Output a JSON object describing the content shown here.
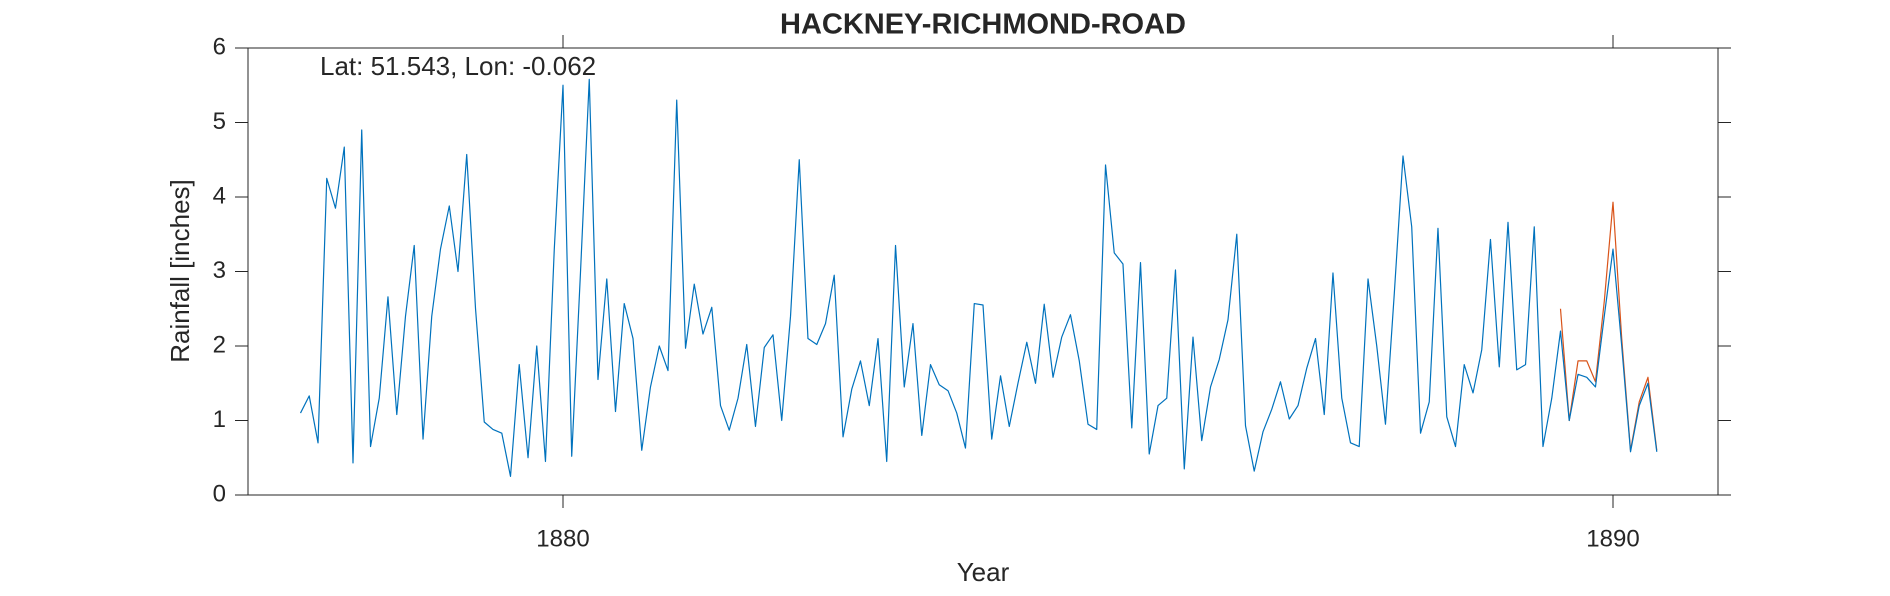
{
  "chart_data": {
    "type": "line",
    "title": "HACKNEY-RICHMOND-ROAD",
    "annotation": "Lat: 51.543, Lon: -0.062",
    "x_label": "Year",
    "y_label": "Rainfall [inches]",
    "xlim": [
      1877,
      1891
    ],
    "xticks": [
      1880,
      1890
    ],
    "ylim": [
      0,
      6
    ],
    "yticks": [
      0,
      1,
      2,
      3,
      4,
      5,
      6
    ],
    "grid": false,
    "series": [
      {
        "color": "#D95319",
        "x": [
          1889.5,
          1889.583,
          1889.667,
          1889.75,
          1889.833,
          1889.917,
          1890,
          1890.083,
          1890.167,
          1890.25,
          1890.333,
          1890.417
        ],
        "values": [
          2.5,
          1.0,
          1.8,
          1.8,
          1.52,
          2.6,
          3.93,
          2.1,
          0.6,
          1.25,
          1.58,
          0.6
        ]
      },
      {
        "color": "#0072BD",
        "x": [
          1877.5,
          1877.583,
          1877.667,
          1877.75,
          1877.833,
          1877.917,
          1878,
          1878.083,
          1878.167,
          1878.25,
          1878.333,
          1878.417,
          1878.5,
          1878.583,
          1878.667,
          1878.75,
          1878.833,
          1878.917,
          1879,
          1879.083,
          1879.167,
          1879.25,
          1879.333,
          1879.417,
          1879.5,
          1879.583,
          1879.667,
          1879.75,
          1879.833,
          1879.917,
          1880,
          1880.083,
          1880.167,
          1880.25,
          1880.333,
          1880.417,
          1880.5,
          1880.583,
          1880.667,
          1880.75,
          1880.833,
          1880.917,
          1881,
          1881.083,
          1881.167,
          1881.25,
          1881.333,
          1881.417,
          1881.5,
          1881.583,
          1881.667,
          1881.75,
          1881.833,
          1881.917,
          1882,
          1882.083,
          1882.167,
          1882.25,
          1882.333,
          1882.417,
          1882.5,
          1882.583,
          1882.667,
          1882.75,
          1882.833,
          1882.917,
          1883,
          1883.083,
          1883.167,
          1883.25,
          1883.333,
          1883.417,
          1883.5,
          1883.583,
          1883.667,
          1883.75,
          1883.833,
          1883.917,
          1884,
          1884.083,
          1884.167,
          1884.25,
          1884.333,
          1884.417,
          1884.5,
          1884.583,
          1884.667,
          1884.75,
          1884.833,
          1884.917,
          1885,
          1885.083,
          1885.167,
          1885.25,
          1885.333,
          1885.417,
          1885.5,
          1885.583,
          1885.667,
          1885.75,
          1885.833,
          1885.917,
          1886,
          1886.083,
          1886.167,
          1886.25,
          1886.333,
          1886.417,
          1886.5,
          1886.583,
          1886.667,
          1886.75,
          1886.833,
          1886.917,
          1887,
          1887.083,
          1887.167,
          1887.25,
          1887.333,
          1887.417,
          1887.5,
          1887.583,
          1887.667,
          1887.75,
          1887.833,
          1887.917,
          1888,
          1888.083,
          1888.167,
          1888.25,
          1888.333,
          1888.417,
          1888.5,
          1888.583,
          1888.667,
          1888.75,
          1888.833,
          1888.917,
          1889,
          1889.083,
          1889.167,
          1889.25,
          1889.333,
          1889.417,
          1889.5,
          1889.583,
          1889.667,
          1889.75,
          1889.833,
          1889.917,
          1890,
          1890.083,
          1890.167,
          1890.25,
          1890.333,
          1890.417
        ],
        "values": [
          1.1,
          1.33,
          0.7,
          4.25,
          3.85,
          4.67,
          0.43,
          4.9,
          0.65,
          1.3,
          2.66,
          1.08,
          2.4,
          3.35,
          0.75,
          2.4,
          3.3,
          3.88,
          3.0,
          4.57,
          2.5,
          0.98,
          0.88,
          0.83,
          0.25,
          1.75,
          0.5,
          2.0,
          0.45,
          3.3,
          5.5,
          0.52,
          3.0,
          5.58,
          1.55,
          2.9,
          1.12,
          2.57,
          2.1,
          0.6,
          1.45,
          2.0,
          1.67,
          5.3,
          1.97,
          2.83,
          2.16,
          2.52,
          1.2,
          0.87,
          1.3,
          2.02,
          0.92,
          1.98,
          2.15,
          1.0,
          2.4,
          4.5,
          2.1,
          2.02,
          2.3,
          2.95,
          0.78,
          1.42,
          1.8,
          1.2,
          2.1,
          0.45,
          3.35,
          1.45,
          2.3,
          0.8,
          1.75,
          1.48,
          1.4,
          1.1,
          0.63,
          2.57,
          2.55,
          0.75,
          1.6,
          0.92,
          1.5,
          2.05,
          1.5,
          2.56,
          1.58,
          2.12,
          2.42,
          1.8,
          0.95,
          0.88,
          4.43,
          3.25,
          3.1,
          0.9,
          3.12,
          0.55,
          1.2,
          1.3,
          3.02,
          0.35,
          2.12,
          0.73,
          1.45,
          1.82,
          2.35,
          3.5,
          0.93,
          0.32,
          0.85,
          1.15,
          1.52,
          1.02,
          1.2,
          1.7,
          2.1,
          1.08,
          2.98,
          1.3,
          0.7,
          0.65,
          2.9,
          2.0,
          0.95,
          2.7,
          4.55,
          3.6,
          0.83,
          1.25,
          3.58,
          1.05,
          0.65,
          1.75,
          1.37,
          1.95,
          3.43,
          1.72,
          3.66,
          1.68,
          1.75,
          3.6,
          0.65,
          1.3,
          2.2,
          1.0,
          1.62,
          1.58,
          1.45,
          2.4,
          3.3,
          2.0,
          0.58,
          1.2,
          1.5,
          0.58
        ]
      }
    ]
  }
}
